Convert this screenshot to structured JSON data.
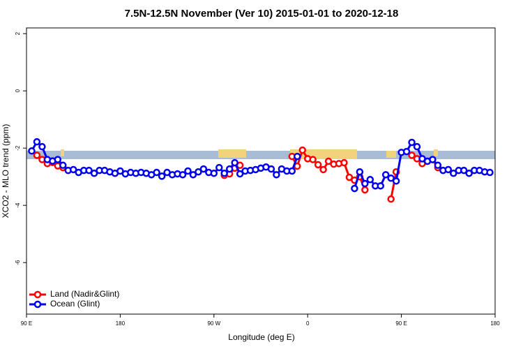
{
  "chart_data": {
    "type": "line",
    "title": "7.5N-12.5N November (Ver 10)   2015-01-01 to 2020-12-18",
    "xlabel": "Longitude (deg E)",
    "ylabel": "XCO2 - MLO trend (ppm)",
    "x": [
      95,
      100,
      105,
      110,
      115,
      120,
      125,
      130,
      135,
      140,
      145,
      150,
      155,
      160,
      165,
      170,
      175,
      180,
      185,
      190,
      195,
      200,
      205,
      210,
      215,
      220,
      225,
      230,
      235,
      240,
      245,
      250,
      255,
      260,
      265,
      270,
      275,
      280,
      285,
      290,
      295,
      300,
      305,
      310,
      315,
      320,
      325,
      330,
      335,
      340,
      345,
      350,
      355,
      360,
      365,
      370,
      375,
      380,
      385,
      390,
      395,
      400,
      405,
      410,
      415,
      420,
      425,
      430,
      435,
      440,
      445,
      450,
      455,
      460,
      465,
      470,
      475,
      480,
      485,
      490,
      495,
      500,
      505,
      510,
      515,
      520,
      525,
      530,
      535
    ],
    "series": [
      {
        "name": "Land (Nadir&Glint)",
        "color": "#ff0000",
        "values": [
          null,
          -2.25,
          -2.4,
          -2.54,
          -2.5,
          -2.62,
          -2.68,
          null,
          null,
          null,
          null,
          null,
          null,
          null,
          null,
          null,
          null,
          null,
          null,
          null,
          null,
          null,
          null,
          null,
          null,
          null,
          null,
          null,
          null,
          null,
          null,
          null,
          null,
          null,
          null,
          null,
          null,
          -2.95,
          -2.9,
          -2.7,
          -2.6,
          null,
          null,
          null,
          null,
          null,
          null,
          null,
          null,
          null,
          -2.29,
          -2.63,
          -2.07,
          -2.37,
          -2.4,
          -2.58,
          -2.75,
          -2.46,
          -2.56,
          -2.54,
          -2.51,
          -3.02,
          -3.12,
          -3.0,
          -3.46,
          null,
          null,
          null,
          null,
          -3.78,
          -2.83,
          null,
          null,
          -2.25,
          -2.37,
          -2.54,
          -2.46,
          -2.4,
          -2.68,
          null,
          null,
          null,
          null,
          null,
          null,
          null,
          null,
          null,
          null
        ]
      },
      {
        "name": "Ocean (Glint)",
        "color": "#0000ee",
        "values": [
          -2.1,
          -1.78,
          -1.95,
          -2.4,
          -2.45,
          -2.4,
          -2.6,
          -2.78,
          -2.75,
          -2.85,
          -2.78,
          -2.78,
          -2.88,
          -2.78,
          -2.78,
          -2.83,
          -2.88,
          -2.8,
          -2.9,
          -2.85,
          -2.88,
          -2.85,
          -2.88,
          -2.93,
          -2.85,
          -2.98,
          -2.85,
          -2.93,
          -2.9,
          -2.93,
          -2.8,
          -2.93,
          -2.83,
          -2.73,
          -2.85,
          -2.88,
          -2.68,
          -2.88,
          -2.73,
          -2.51,
          -2.9,
          -2.8,
          -2.78,
          -2.75,
          -2.7,
          -2.66,
          -2.73,
          -2.93,
          -2.73,
          -2.8,
          -2.8,
          -2.29,
          null,
          null,
          null,
          null,
          null,
          null,
          null,
          null,
          null,
          null,
          -3.41,
          -2.83,
          -3.24,
          -3.1,
          -3.32,
          -3.32,
          -2.93,
          -3.05,
          -3.15,
          -2.15,
          -2.12,
          -1.8,
          -1.95,
          -2.37,
          -2.46,
          -2.4,
          -2.6,
          -2.78,
          -2.75,
          -2.88,
          -2.78,
          -2.78,
          -2.88,
          -2.78,
          -2.78,
          -2.83,
          -2.85
        ]
      }
    ],
    "xlim": [
      90,
      540
    ],
    "xticks": [
      {
        "value": 90,
        "label": "90 E"
      },
      180,
      {
        "value": 270,
        "label": "90 W"
      },
      {
        "value": 360,
        "label": "0"
      },
      {
        "value": 450,
        "label": "90 E"
      },
      180
    ],
    "ylim": [
      -7.8,
      2.2
    ],
    "yticks": [
      2,
      0,
      -2,
      -4,
      -6
    ],
    "legend": "bottom-left"
  }
}
